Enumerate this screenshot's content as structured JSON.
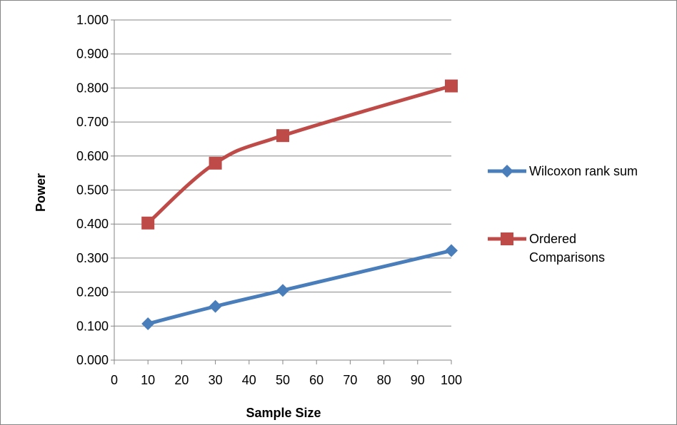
{
  "chart_data": {
    "type": "line",
    "title": "",
    "xlabel": "Sample Size",
    "ylabel": "Power",
    "xlim": [
      0,
      100
    ],
    "ylim": [
      0,
      1
    ],
    "xticks": [
      "0",
      "10",
      "20",
      "30",
      "40",
      "50",
      "60",
      "70",
      "80",
      "90",
      "100"
    ],
    "yticks": [
      "0.000",
      "0.100",
      "0.200",
      "0.300",
      "0.400",
      "0.500",
      "0.600",
      "0.700",
      "0.800",
      "0.900",
      "1.000"
    ],
    "grid": "horizontal",
    "legend_position": "right",
    "x": [
      10,
      30,
      50,
      100
    ],
    "series": [
      {
        "name": "Wilcoxon rank sum",
        "name_lines": [
          "Wilcoxon rank sum"
        ],
        "values": [
          0.107,
          0.158,
          0.205,
          0.322
        ],
        "color": "#4a7ebb",
        "marker": "diamond"
      },
      {
        "name": "Ordered Comparisons",
        "name_lines": [
          "Ordered",
          "Comparisons"
        ],
        "values": [
          0.403,
          0.579,
          0.66,
          0.806
        ],
        "color": "#be4b48",
        "marker": "square"
      }
    ]
  }
}
